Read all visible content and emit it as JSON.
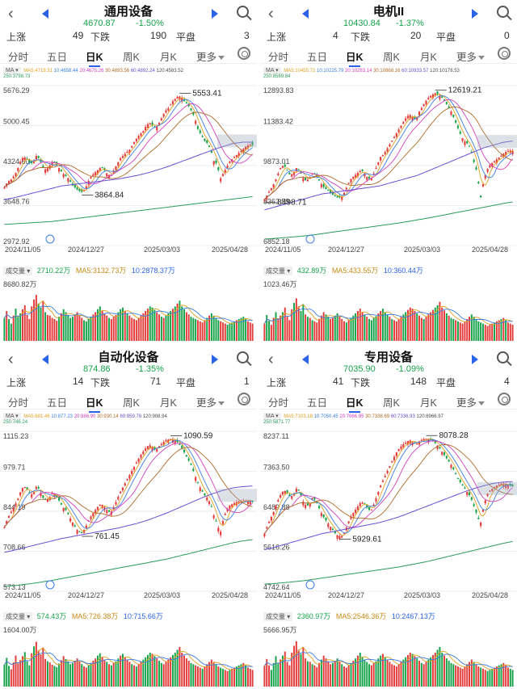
{
  "panels": [
    {
      "name": "通用设备",
      "price": "4670.87",
      "change_pct": "-1.50%",
      "up_label": "上涨",
      "up_count": "49",
      "down_label": "下跌",
      "down_count": "190",
      "flat_label": "平盘",
      "flat_count": "3",
      "tabs": [
        "分时",
        "五日",
        "日K",
        "周K",
        "月K",
        "更多"
      ],
      "active_tab": "日K",
      "ma_button": "MA",
      "ma_values": {
        "MA5": "4719.31",
        "10": "4658.44",
        "20": "4675.26",
        "30": "4893.56",
        "60": "4892.24",
        "120": "4583.52",
        "250": "3798.73"
      },
      "vol_label": "成交量",
      "volume": "2710.22万",
      "vol_ma5": "MA5:3132.73万",
      "vol_ma10": "10:2878.37万",
      "vol_max_label": "8680.82万",
      "vol_bars": [
        40,
        52,
        38,
        30,
        44,
        56,
        42,
        48,
        55,
        62,
        45,
        38,
        60,
        72,
        80,
        65,
        58,
        70,
        50,
        45,
        44,
        40,
        38,
        35,
        42,
        48,
        55,
        50,
        45,
        40,
        42,
        46,
        50,
        44,
        40,
        36,
        34,
        38,
        42,
        46,
        50,
        55,
        60,
        52,
        48,
        44,
        40,
        38,
        42,
        45,
        50,
        55,
        58,
        52,
        48,
        44,
        40,
        38,
        36,
        40,
        44,
        48,
        52,
        56,
        60,
        58,
        54,
        50,
        46,
        42,
        40,
        44,
        48,
        52,
        56,
        60,
        65,
        70,
        60,
        55,
        50,
        46,
        42,
        40,
        38,
        36,
        34,
        32,
        36,
        40,
        44,
        48,
        44,
        40,
        36,
        34,
        32,
        30,
        28,
        30,
        32,
        34,
        36,
        38,
        40,
        42,
        38,
        34,
        32,
        30
      ],
      "chart_data": {
        "type": "candlestick",
        "x_ticks": [
          "2024/11/05",
          "2024/12/27",
          "2025/03/03",
          "2025/04/28"
        ],
        "y_ticks": [
          "5676.29",
          "5000.45",
          "4324.60",
          "3648.76",
          "2972.92"
        ],
        "ylim": [
          2972.92,
          5676.29
        ],
        "high_label": "5553.41",
        "low_label": "3864.84",
        "path": [
          3960,
          4050,
          4080,
          4150,
          4250,
          4400,
          4480,
          4430,
          4350,
          4380,
          4500,
          4420,
          4300,
          4250,
          4320,
          4400,
          4360,
          4280,
          4200,
          4150,
          4100,
          4000,
          3950,
          3900,
          3880,
          3920,
          4050,
          4150,
          4200,
          4250,
          4300,
          4250,
          4180,
          4150,
          4250,
          4350,
          4450,
          4500,
          4550,
          4600,
          4700,
          4780,
          4850,
          4900,
          5000,
          5050,
          5000,
          4950,
          5050,
          5150,
          5250,
          5300,
          5400,
          5450,
          5500,
          5480,
          5400,
          5350,
          5250,
          5150,
          4950,
          4850,
          4750,
          4700,
          4600,
          4400,
          4350,
          4100,
          4200,
          4300,
          4400,
          4450,
          4500,
          4550,
          4600,
          4650,
          4680,
          4670
        ],
        "ma_low": [
          3330,
          3340,
          3350,
          3360,
          3370,
          3380,
          3400,
          3420,
          3440,
          3460,
          3480,
          3500,
          3520,
          3540,
          3560,
          3580,
          3600,
          3620,
          3640,
          3660,
          3680,
          3700,
          3720,
          3740,
          3760,
          3780,
          3800
        ],
        "ma_mid": [
          3750,
          3780,
          3820,
          3860,
          3900,
          3940,
          3980,
          4000,
          4020,
          4040,
          4060,
          4080,
          4100,
          4130,
          4160,
          4200,
          4250,
          4300,
          4360,
          4420,
          4480,
          4540,
          4600,
          4650,
          4700,
          4720,
          4720
        ]
      }
    },
    {
      "name": "电机II",
      "price": "10430.84",
      "change_pct": "-1.37%",
      "up_label": "上涨",
      "up_count": "4",
      "down_label": "下跌",
      "down_count": "20",
      "flat_label": "平盘",
      "flat_count": "0",
      "tabs": [
        "分时",
        "五日",
        "日K",
        "周K",
        "月K",
        "更多"
      ],
      "active_tab": "日K",
      "ma_button": "MA",
      "ma_values": {
        "MA5": "10455.72",
        "10": "10225.79",
        "20": "10283.14",
        "30": "10868.16",
        "60": "10933.57",
        "120": "10178.53",
        "250": "8569.84"
      },
      "vol_label": "成交量",
      "volume": "432.89万",
      "vol_ma5": "MA5:433.55万",
      "vol_ma10": "10:360.44万",
      "vol_max_label": "1023.46万",
      "vol_bars": [
        30,
        45,
        35,
        28,
        40,
        50,
        38,
        44,
        50,
        58,
        42,
        36,
        55,
        66,
        74,
        60,
        52,
        64,
        46,
        42,
        40,
        36,
        34,
        32,
        38,
        44,
        50,
        46,
        42,
        38,
        40,
        44,
        48,
        42,
        38,
        34,
        32,
        36,
        40,
        44,
        48,
        52,
        56,
        50,
        46,
        42,
        38,
        36,
        40,
        43,
        48,
        52,
        56,
        50,
        46,
        42,
        38,
        36,
        34,
        38,
        42,
        46,
        50,
        54,
        58,
        56,
        52,
        48,
        44,
        40,
        38,
        42,
        46,
        50,
        54,
        58,
        62,
        68,
        58,
        53,
        48,
        44,
        40,
        38,
        36,
        34,
        32,
        30,
        34,
        38,
        42,
        46,
        42,
        38,
        34,
        32,
        30,
        28,
        26,
        28,
        30,
        32,
        34,
        36,
        38,
        40,
        36,
        32,
        30,
        28
      ],
      "chart_data": {
        "type": "candlestick",
        "x_ticks": [
          "2024/11/05",
          "2024/12/27",
          "2025/03/03",
          "2025/04/28"
        ],
        "y_ticks": [
          "12893.83",
          "11383.42",
          "9873.01",
          "8362.59",
          "6852.18"
        ],
        "ylim": [
          6852.18,
          12893.83
        ],
        "high_label": "12619.21",
        "low_label": "8498.71",
        "path": [
          8600,
          8800,
          9000,
          9200,
          9500,
          9800,
          9900,
          9700,
          9500,
          9600,
          9800,
          9650,
          9400,
          9300,
          9400,
          9600,
          9500,
          9300,
          9100,
          9000,
          8900,
          8800,
          8700,
          8650,
          8700,
          8900,
          9200,
          9400,
          9500,
          9600,
          9700,
          9600,
          9400,
          9350,
          9600,
          9900,
          10200,
          10300,
          10500,
          10700,
          10900,
          11100,
          11300,
          11500,
          11700,
          11800,
          11700,
          11600,
          11900,
          12100,
          12300,
          12450,
          12550,
          12600,
          12550,
          12450,
          12300,
          12100,
          11900,
          11600,
          11300,
          11000,
          10800,
          10700,
          10500,
          10000,
          9600,
          8600,
          9300,
          9700,
          9900,
          10000,
          10100,
          10200,
          10300,
          10400,
          10450,
          10430
        ],
        "ma_low": [
          7100,
          7120,
          7150,
          7180,
          7210,
          7250,
          7300,
          7350,
          7400,
          7450,
          7500,
          7550,
          7600,
          7650,
          7700,
          7760,
          7820,
          7880,
          7950,
          8020,
          8090,
          8160,
          8230,
          8300,
          8370,
          8440,
          8500
        ],
        "ma_mid": [
          8200,
          8300,
          8400,
          8500,
          8600,
          8700,
          8800,
          8850,
          8900,
          8950,
          9000,
          9050,
          9100,
          9200,
          9300,
          9400,
          9500,
          9650,
          9800,
          9950,
          10100,
          10250,
          10400,
          10550,
          10650,
          10750,
          10800
        ]
      }
    },
    {
      "name": "自动化设备",
      "price": "874.86",
      "change_pct": "-1.35%",
      "up_label": "上涨",
      "up_count": "14",
      "down_label": "下跌",
      "down_count": "71",
      "flat_label": "平盘",
      "flat_count": "1",
      "tabs": [
        "分时",
        "五日",
        "日K",
        "周K",
        "月K",
        "更多"
      ],
      "active_tab": "日K",
      "ma_button": "MA",
      "ma_values": {
        "MA5": "881.46",
        "10": "877.23",
        "20": "886.90",
        "30": "930.14",
        "60": "959.78",
        "120": "908.94",
        "250": "746.24"
      },
      "vol_label": "成交量",
      "volume": "574.43万",
      "vol_ma5": "MA5:726.38万",
      "vol_ma10": "10:715.66万",
      "vol_max_label": "1604.00万",
      "vol_bars": [
        38,
        50,
        36,
        30,
        42,
        54,
        40,
        46,
        53,
        60,
        44,
        37,
        58,
        70,
        78,
        63,
        56,
        68,
        48,
        44,
        42,
        38,
        36,
        34,
        40,
        46,
        53,
        48,
        44,
        39,
        41,
        45,
        49,
        43,
        39,
        35,
        33,
        37,
        41,
        45,
        49,
        54,
        58,
        51,
        47,
        43,
        39,
        37,
        41,
        44,
        49,
        54,
        57,
        51,
        47,
        43,
        39,
        37,
        35,
        39,
        43,
        47,
        51,
        55,
        59,
        57,
        53,
        49,
        45,
        41,
        39,
        43,
        47,
        51,
        55,
        59,
        64,
        69,
        59,
        54,
        49,
        45,
        41,
        39,
        37,
        35,
        33,
        31,
        35,
        39,
        43,
        47,
        43,
        39,
        35,
        33,
        31,
        29,
        27,
        29,
        31,
        33,
        35,
        37,
        39,
        41,
        37,
        33,
        31,
        29
      ],
      "chart_data": {
        "type": "candlestick",
        "x_ticks": [
          "2024/11/05",
          "2024/12/27",
          "2025/03/03",
          "2025/04/28"
        ],
        "y_ticks": [
          "1115.23",
          "979.71",
          "844.19",
          "708.66",
          "573.13"
        ],
        "ylim": [
          573.13,
          1115.23
        ],
        "high_label": "1090.59",
        "low_label": "761.45",
        "path": [
          790,
          820,
          840,
          860,
          880,
          910,
          930,
          920,
          900,
          905,
          930,
          915,
          890,
          880,
          890,
          910,
          900,
          880,
          860,
          850,
          830,
          810,
          790,
          775,
          770,
          785,
          810,
          830,
          845,
          860,
          870,
          860,
          845,
          840,
          860,
          885,
          910,
          930,
          950,
          970,
          990,
          1010,
          1030,
          1045,
          1060,
          1070,
          1060,
          1050,
          1065,
          1075,
          1085,
          1088,
          1090,
          1085,
          1075,
          1060,
          1040,
          1020,
          1000,
          970,
          940,
          920,
          900,
          890,
          870,
          830,
          800,
          770,
          820,
          850,
          865,
          870,
          875,
          878,
          880,
          882,
          880,
          875
        ],
        "ma_low": [
          590,
          592,
          596,
          600,
          605,
          610,
          616,
          622,
          628,
          634,
          640,
          646,
          652,
          658,
          664,
          670,
          676,
          682,
          690,
          698,
          706,
          714,
          722,
          730,
          738,
          744,
          748
        ],
        "ma_mid": [
          705,
          712,
          720,
          728,
          736,
          744,
          752,
          758,
          764,
          770,
          776,
          782,
          788,
          796,
          804,
          814,
          826,
          838,
          852,
          866,
          880,
          894,
          906,
          916,
          924,
          928,
          930
        ]
      }
    },
    {
      "name": "专用设备",
      "price": "7035.90",
      "change_pct": "-1.09%",
      "up_label": "上涨",
      "up_count": "41",
      "down_label": "下跌",
      "down_count": "148",
      "flat_label": "平盘",
      "flat_count": "4",
      "tabs": [
        "分时",
        "五日",
        "日K",
        "周K",
        "月K",
        "更多"
      ],
      "active_tab": "日K",
      "ma_button": "MA",
      "ma_values": {
        "MA5": "7103.18",
        "10": "7050.45",
        "20": "7066.95",
        "30": "7338.69",
        "60": "7336.93",
        "120": "6966.97",
        "250": "5871.77"
      },
      "vol_label": "成交量",
      "volume": "2360.97万",
      "vol_ma5": "MA5:2546.36万",
      "vol_ma10": "10:2467.13万",
      "vol_max_label": "5666.95万",
      "vol_bars": [
        36,
        48,
        37,
        29,
        41,
        53,
        41,
        47,
        54,
        61,
        43,
        37,
        59,
        71,
        79,
        64,
        57,
        69,
        49,
        44,
        43,
        39,
        37,
        34,
        41,
        47,
        54,
        49,
        44,
        39,
        41,
        45,
        49,
        43,
        39,
        35,
        33,
        37,
        41,
        45,
        49,
        54,
        59,
        51,
        47,
        43,
        39,
        37,
        41,
        44,
        49,
        54,
        57,
        51,
        47,
        43,
        39,
        37,
        35,
        39,
        43,
        47,
        51,
        55,
        59,
        57,
        53,
        49,
        45,
        41,
        39,
        43,
        47,
        51,
        55,
        59,
        64,
        69,
        59,
        54,
        49,
        45,
        41,
        39,
        37,
        35,
        33,
        31,
        35,
        39,
        43,
        47,
        43,
        39,
        35,
        33,
        31,
        29,
        27,
        29,
        31,
        33,
        35,
        37,
        39,
        41,
        37,
        33,
        31,
        29
      ],
      "chart_data": {
        "type": "candlestick",
        "x_ticks": [
          "2024/11/05",
          "2024/12/27",
          "2025/03/03",
          "2025/04/28"
        ],
        "y_ticks": [
          "8237.11",
          "7363.50",
          "6489.88",
          "5616.26",
          "4742.64"
        ],
        "ylim": [
          4742.64,
          8237.11
        ],
        "high_label": "8078.28",
        "low_label": "5929.61",
        "path": [
          6000,
          6200,
          6350,
          6500,
          6700,
          6850,
          6950,
          6900,
          6800,
          6850,
          7000,
          6900,
          6700,
          6600,
          6650,
          6800,
          6700,
          6550,
          6400,
          6300,
          6200,
          6100,
          6000,
          5950,
          5950,
          6050,
          6250,
          6400,
          6500,
          6600,
          6700,
          6650,
          6550,
          6500,
          6650,
          6850,
          7050,
          7200,
          7350,
          7500,
          7650,
          7780,
          7880,
          7950,
          8000,
          8050,
          8000,
          7950,
          8020,
          8060,
          8075,
          8070,
          8040,
          7980,
          7900,
          7800,
          7700,
          7600,
          7500,
          7350,
          7200,
          7100,
          7000,
          6900,
          6800,
          6600,
          6400,
          6200,
          6600,
          6850,
          6950,
          7000,
          7050,
          7080,
          7100,
          7080,
          7050,
          7036
        ],
        "ma_low": [
          4900,
          4910,
          4930,
          4950,
          4970,
          5000,
          5030,
          5060,
          5090,
          5120,
          5150,
          5180,
          5210,
          5240,
          5270,
          5310,
          5350,
          5390,
          5440,
          5490,
          5540,
          5590,
          5640,
          5690,
          5740,
          5790,
          5830
        ],
        "ma_mid": [
          5650,
          5700,
          5760,
          5820,
          5880,
          5940,
          6000,
          6040,
          6080,
          6120,
          6160,
          6200,
          6240,
          6300,
          6360,
          6440,
          6520,
          6600,
          6680,
          6760,
          6840,
          6920,
          6990,
          7050,
          7100,
          7130,
          7140
        ]
      }
    }
  ],
  "colors": {
    "up": "#e43b3b",
    "down": "#16a34a",
    "accent": "#2a63e5",
    "ma5": "#e0a020",
    "ma10": "#3b7de0",
    "ma20": "#d040c0",
    "ma30": "#b06a2a",
    "ma60": "#6a4fd0",
    "ma120": "#4a4a4a",
    "ma250": "#2a9a5a"
  }
}
